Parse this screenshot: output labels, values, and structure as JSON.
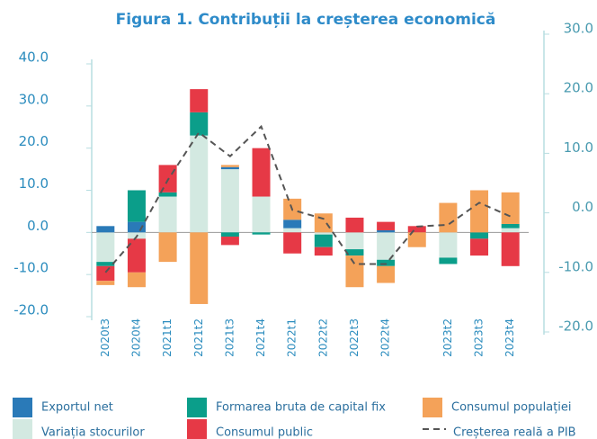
{
  "chart_data": {
    "type": "bar",
    "title": "Figura 1. Contribuții la creșterea economică",
    "categories": [
      "2020t3",
      "2020t4",
      "2021t1",
      "2021t2",
      "2021t3",
      "2021t4",
      "2022t1",
      "2022t2",
      "2022t3",
      "2022t4",
      null,
      "2023t2",
      "2023t3",
      "2023t4"
    ],
    "stacked": true,
    "series": [
      {
        "name": "Exportul net",
        "color": "#2a7ab8",
        "values": [
          1.5,
          2.5,
          0,
          0,
          0.5,
          0,
          2,
          0,
          0,
          0.5,
          0,
          0,
          0,
          0
        ]
      },
      {
        "name": "Formarea bruta de capital fix",
        "color": "#0b9e8a",
        "values": [
          -1,
          7.5,
          1,
          5.5,
          -1,
          -0.5,
          0,
          -3,
          -1.5,
          -1.5,
          0,
          -1.5,
          -1.5,
          1
        ]
      },
      {
        "name": "Consumul populației",
        "color": "#f4a259",
        "values": [
          -1,
          -3.5,
          -7,
          -17,
          0.5,
          0,
          5,
          4.5,
          -7.5,
          -4,
          -3.5,
          7,
          10,
          7.5
        ]
      },
      {
        "name": "Variația stocurilor",
        "color": "#d3e9e1",
        "values": [
          -7,
          -1.5,
          8.5,
          23,
          15,
          8.5,
          1,
          -0.5,
          -4,
          -6.5,
          0,
          -6,
          0,
          1
        ]
      },
      {
        "name": "Consumul public",
        "color": "#e63946",
        "values": [
          -3.5,
          -8,
          6.5,
          5.5,
          -2,
          11.5,
          -5,
          -2,
          3.5,
          2,
          1.5,
          0,
          -4,
          -8
        ]
      },
      {
        "name": "Creșterea reală a PIB",
        "type": "line",
        "axis": "y2",
        "color": "#555555",
        "dashed": true,
        "values": [
          -10,
          -4,
          5.5,
          13.5,
          9.5,
          14.5,
          0.5,
          -1,
          -8.6,
          -8.6,
          -2.3,
          -2,
          1.7,
          -0.6
        ]
      }
    ],
    "ylim": [
      -20,
      40
    ],
    "yticks": [
      {
        "value": -20,
        "label": "-20.0"
      },
      {
        "value": -10,
        "label": "-10.0"
      },
      {
        "value": 0,
        "label": "0.0"
      },
      {
        "value": 10,
        "label": "10.0"
      },
      {
        "value": 20,
        "label": "20.0"
      },
      {
        "value": 30,
        "label": "30.0"
      },
      {
        "value": 40,
        "label": "40.0"
      }
    ],
    "y2lim": [
      -20,
      30
    ],
    "y2ticks": [
      {
        "value": -20,
        "label": "-20.0"
      },
      {
        "value": -10,
        "label": "-10.0"
      },
      {
        "value": 0,
        "label": "0.0"
      },
      {
        "value": 10,
        "label": "10.0"
      },
      {
        "value": 20,
        "label": "20.0"
      },
      {
        "value": 30,
        "label": "30.0"
      }
    ],
    "legend": "bottom"
  }
}
